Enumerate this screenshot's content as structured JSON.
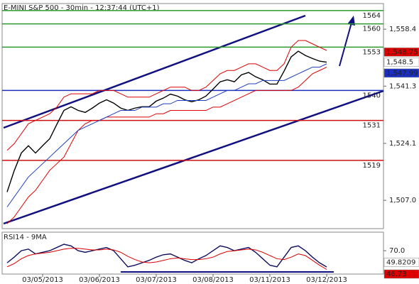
{
  "chart_data": [
    {
      "type": "line",
      "title": "E-MINI S&P 500 - 30min - 12:37:44 (UTC+1)",
      "categories": [
        null,
        null,
        null,
        null,
        null,
        "03/05/2013",
        null,
        null,
        null,
        null,
        null,
        null,
        null,
        "03/06/2013",
        null,
        null,
        null,
        null,
        null,
        null,
        null,
        "03/07/2013",
        null,
        null,
        null,
        null,
        null,
        null,
        null,
        "03/08/2013",
        null,
        null,
        null,
        null,
        null,
        null,
        null,
        "03/11/2013",
        null,
        null,
        null,
        null,
        null,
        null,
        null,
        "03/12/2013"
      ],
      "series": [
        {
          "name": "Price",
          "color": "#000000",
          "values": [
            1509.5,
            1515.9,
            1521.2,
            1523.4,
            1521.2,
            1523.4,
            1525.5,
            1529.8,
            1534.0,
            1535.1,
            1534.0,
            1533.4,
            1534.7,
            1536.2,
            1537.2,
            1536.2,
            1534.7,
            1534.0,
            1534.7,
            1535.1,
            1535.1,
            1536.8,
            1537.7,
            1538.9,
            1538.3,
            1537.2,
            1536.6,
            1537.2,
            1538.3,
            1540.4,
            1542.6,
            1543.2,
            1542.6,
            1544.7,
            1545.4,
            1544.1,
            1543.2,
            1541.9,
            1541.9,
            1545.8,
            1550.1,
            1551.8,
            1550.5,
            1549.6,
            1548.8,
            1548.5
          ]
        },
        {
          "name": "Upper band",
          "color": "#dd0000",
          "values": [
            1522,
            1524,
            1527,
            1530,
            1531,
            1532,
            1533,
            1535,
            1538,
            1539,
            1539,
            1539,
            1539,
            1540,
            1540,
            1540,
            1539,
            1538,
            1538,
            1538,
            1538,
            1539,
            1540,
            1541,
            1541,
            1541,
            1540,
            1540,
            1541,
            1543,
            1545,
            1546,
            1546,
            1547,
            1548,
            1548,
            1547,
            1546,
            1546,
            1548,
            1553,
            1555,
            1555,
            1554,
            1553,
            1552
          ]
        },
        {
          "name": "Lower band",
          "color": "#dd0000",
          "values": [
            1500,
            1502,
            1505,
            1508,
            1510,
            1513,
            1516,
            1518,
            1520,
            1524,
            1528,
            1530,
            1531,
            1531,
            1532,
            1532,
            1532,
            1532,
            1532,
            1532,
            1532,
            1533,
            1533,
            1534,
            1534,
            1534,
            1534,
            1534,
            1534,
            1535,
            1535,
            1536,
            1537,
            1538,
            1539,
            1540,
            1540,
            1540,
            1540,
            1540,
            1540,
            1541,
            1543,
            1545,
            1546,
            1547
          ]
        },
        {
          "name": "MA",
          "color": "#1f3fbf",
          "values": [
            1505,
            1508,
            1511,
            1514,
            1516,
            1518,
            1520,
            1522,
            1524,
            1526,
            1528,
            1529,
            1530,
            1531,
            1532,
            1533,
            1534,
            1534,
            1534,
            1535,
            1535,
            1535,
            1536,
            1536,
            1537,
            1537,
            1537,
            1537,
            1537,
            1538,
            1539,
            1540,
            1540,
            1541,
            1542,
            1542,
            1543,
            1543,
            1543,
            1543,
            1544,
            1545,
            1546,
            1547,
            1547,
            1548
          ]
        }
      ],
      "ylim": [
        1498.5,
        1566.1
      ],
      "yticks": [
        {
          "value": 1507.0,
          "label": "1,507.0"
        },
        {
          "value": 1524.1,
          "label": "1,524.1"
        },
        {
          "value": 1541.3,
          "label": "1,541.3"
        },
        {
          "value": 1558.4,
          "label": "1,558.4"
        }
      ],
      "levels": [
        {
          "value": 1564,
          "color": "#2a9a2a"
        },
        {
          "value": 1560,
          "color": "#2a9a2a"
        },
        {
          "value": 1553,
          "color": "#2a9a2a"
        },
        {
          "value": 1540,
          "color": "#1a2fbf"
        },
        {
          "value": 1531,
          "color": "#cc1111"
        },
        {
          "value": 1519,
          "color": "#cc1111"
        }
      ],
      "markers": [
        {
          "value": 1548.75,
          "label": "1,548.75",
          "color": "#dd0000"
        },
        {
          "value": 1548.5,
          "label": "1,548.5",
          "color": "#ffffff"
        },
        {
          "value": 1547.99,
          "label": "1,547.99",
          "color": "#1a2fbf"
        }
      ]
    },
    {
      "type": "line",
      "title": "RSI14 - 9MA",
      "series": [
        {
          "name": "RSI14",
          "color": "#101060",
          "values": [
            55,
            62,
            70,
            72,
            66,
            68,
            70,
            74,
            78,
            76,
            70,
            68,
            70,
            72,
            74,
            70,
            60,
            50,
            52,
            55,
            58,
            62,
            65,
            66,
            62,
            58,
            55,
            60,
            64,
            70,
            76,
            74,
            70,
            72,
            74,
            68,
            60,
            52,
            50,
            62,
            74,
            76,
            70,
            62,
            55,
            49.8209
          ]
        },
        {
          "name": "9MA",
          "color": "#dd0000",
          "values": [
            50,
            54,
            60,
            64,
            66,
            67,
            68,
            70,
            72,
            73,
            73,
            72,
            71,
            71,
            72,
            71,
            68,
            63,
            59,
            56,
            55,
            56,
            58,
            60,
            61,
            60,
            59,
            59,
            60,
            62,
            66,
            69,
            70,
            71,
            72,
            71,
            68,
            64,
            60,
            59,
            62,
            66,
            64,
            58,
            52,
            46.73
          ]
        }
      ],
      "ylim": [
        41,
        93
      ],
      "yticks": [
        {
          "value": 70,
          "label": "70.0"
        }
      ],
      "markers": [
        {
          "value": 49.8209,
          "label": "49.8209",
          "color": "#ffffff"
        },
        {
          "value": 46.73,
          "label": "46.73",
          "color": "#dd0000"
        }
      ]
    }
  ]
}
